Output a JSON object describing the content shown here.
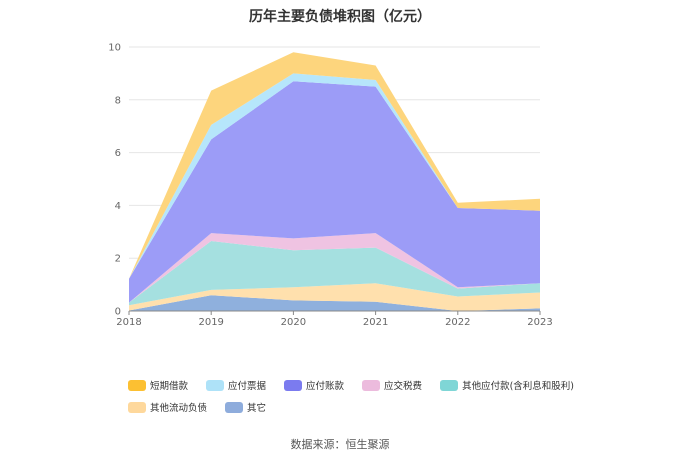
{
  "chart_data": {
    "type": "area",
    "stacked": true,
    "title": "历年主要负债堆积图（亿元）",
    "categories": [
      "2018",
      "2019",
      "2020",
      "2021",
      "2022",
      "2023"
    ],
    "ylim": [
      0,
      10
    ],
    "yticks": [
      0,
      2,
      4,
      6,
      8,
      10
    ],
    "grid": true,
    "legend_position": "bottom",
    "series": [
      {
        "name": "其它",
        "color": "#8fb0dd",
        "values": [
          0.02,
          0.6,
          0.4,
          0.35,
          0.0,
          0.1
        ]
      },
      {
        "name": "其他流动负债",
        "color": "#ffe0ad",
        "values": [
          0.2,
          0.2,
          0.5,
          0.7,
          0.55,
          0.6
        ]
      },
      {
        "name": "其他应付款(含利息和股利)",
        "color": "#a5e0e0",
        "values": [
          0.1,
          1.85,
          1.4,
          1.35,
          0.3,
          0.35
        ]
      },
      {
        "name": "应交税费",
        "color": "#efc3e2",
        "values": [
          0.0,
          0.3,
          0.45,
          0.55,
          0.05,
          0.0
        ]
      },
      {
        "name": "应付账款",
        "color": "#9c9cf7",
        "values": [
          0.9,
          3.55,
          5.95,
          5.55,
          3.0,
          2.75
        ]
      },
      {
        "name": "应付票据",
        "color": "#b6e6fb",
        "values": [
          0.0,
          0.55,
          0.3,
          0.25,
          0.0,
          0.0
        ]
      },
      {
        "name": "短期借款",
        "color": "#fdd57d",
        "values": [
          0.0,
          1.3,
          0.8,
          0.55,
          0.2,
          0.45
        ]
      }
    ],
    "legend": [
      {
        "name": "短期借款",
        "color": "#fcc032"
      },
      {
        "name": "应付票据",
        "color": "#aee2f8"
      },
      {
        "name": "应付账款",
        "color": "#7b7bef"
      },
      {
        "name": "应交税费",
        "color": "#ecbbdd"
      },
      {
        "name": "其他应付款(含利息和股利)",
        "color": "#7fd6d6"
      },
      {
        "name": "其他流动负债",
        "color": "#fed89c"
      },
      {
        "name": "其它",
        "color": "#8eacdc"
      }
    ]
  },
  "source_text": "数据来源：恒生聚源"
}
